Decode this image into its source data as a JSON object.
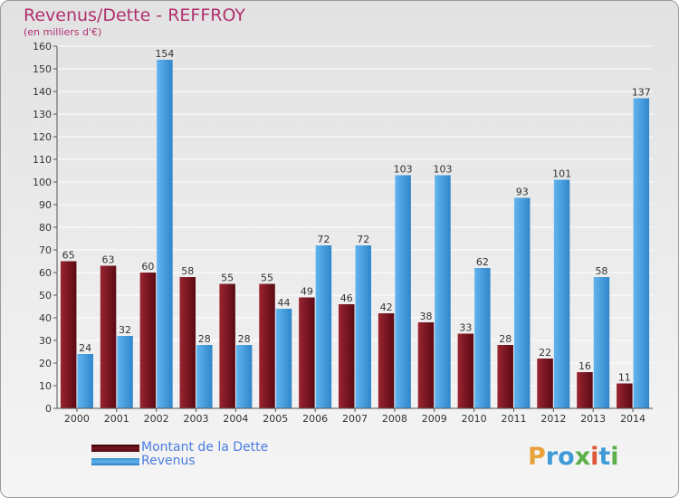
{
  "chart_data": {
    "type": "bar",
    "title": "Revenus/Dette - REFFROY",
    "subtitle": "(en milliers d'€)",
    "categories": [
      "2000",
      "2001",
      "2002",
      "2003",
      "2004",
      "2005",
      "2006",
      "2007",
      "2008",
      "2009",
      "2010",
      "2011",
      "2012",
      "2013",
      "2014"
    ],
    "series": [
      {
        "name": "Montant de la Dette",
        "color": "#7a1622",
        "values": [
          65,
          63,
          60,
          58,
          55,
          55,
          49,
          46,
          42,
          38,
          33,
          28,
          22,
          16,
          11
        ]
      },
      {
        "name": "Revenus",
        "color": "#4aa3e6",
        "values": [
          24,
          32,
          154,
          28,
          28,
          44,
          72,
          72,
          103,
          103,
          62,
          93,
          101,
          58,
          137
        ]
      }
    ],
    "ylim": [
      0,
      160
    ],
    "yticks": [
      0,
      10,
      20,
      30,
      40,
      50,
      60,
      70,
      80,
      90,
      100,
      110,
      120,
      130,
      140,
      150,
      160
    ],
    "grid": true,
    "legend": "bottom-left"
  },
  "logo": {
    "text": "Proxiti",
    "colors": [
      "#e8a23a",
      "#3f9ad8",
      "#5bb04a",
      "#e0583a"
    ]
  }
}
